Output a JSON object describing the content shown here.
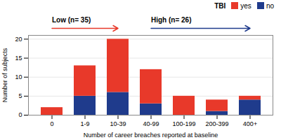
{
  "chart_data": {
    "type": "bar",
    "stacked": true,
    "categories": [
      "0",
      "1-9",
      "10-39",
      "40-99",
      "100-199",
      "200-399",
      "400+"
    ],
    "series": [
      {
        "name": "no",
        "color": "#1f3b8c",
        "values": [
          0,
          5,
          6,
          3,
          0,
          1,
          4
        ]
      },
      {
        "name": "yes",
        "color": "#e8392a",
        "values": [
          2,
          8,
          14,
          9,
          5,
          3,
          1
        ]
      }
    ],
    "xlabel": "Number of career breaches reported at baseline",
    "ylabel": "Number of subjects",
    "ylim": [
      0,
      21
    ],
    "yticks": [
      0,
      5,
      10,
      15,
      20
    ],
    "grid": true,
    "legend": "upper right",
    "legend_title": "TBI",
    "annotations": [
      {
        "text": "Low (n= 35)",
        "from": "0",
        "to": "10-39",
        "color": "#e8392a"
      },
      {
        "text": "High (n= 26)",
        "from": "40-99",
        "to": "400+",
        "color": "#1f3b8c"
      }
    ]
  }
}
